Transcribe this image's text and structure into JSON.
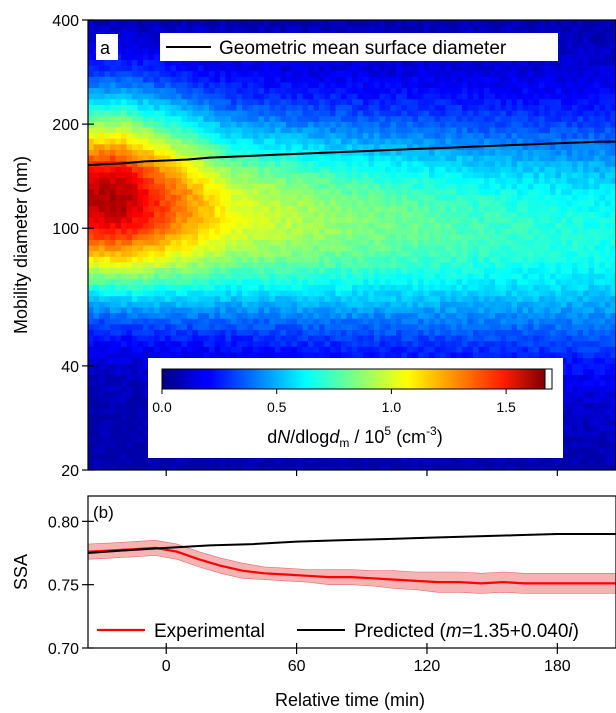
{
  "figure": {
    "xlabel": "Relative time (min)",
    "xticks": [
      0,
      60,
      120,
      180
    ],
    "xlim": [
      -36,
      207
    ]
  },
  "chart_data": [
    {
      "type": "heatmap",
      "panel_label": "a",
      "ylabel": "Mobility diameter (nm)",
      "yscale": "log",
      "ylim": [
        20,
        400
      ],
      "yticks": [
        20,
        40,
        100,
        200,
        400
      ],
      "legend": {
        "entries": [
          "Geometric mean surface diameter"
        ],
        "placement": "top"
      },
      "colorbar": {
        "label_prefix": "d",
        "label_italic1": "N",
        "label_mid": "/dlog",
        "label_italic2": "d",
        "label_sub": "m",
        "label_tail": " / 10",
        "label_sup1": "5",
        "label_units": " (cm",
        "label_sup2": "-3",
        "label_close": ")",
        "ticks": [
          "0.0",
          "0.5",
          "1.0",
          "1.5"
        ],
        "range": [
          0,
          1.7
        ],
        "placement": "bottom-center"
      },
      "mode_ridge": {
        "t": [
          -36,
          -20,
          0,
          30,
          60,
          90,
          120,
          150,
          180,
          207
        ],
        "d": [
          122,
          122,
          118,
          110,
          106,
          103,
          101,
          99,
          97,
          96
        ]
      },
      "peak_intensity": {
        "t": [
          -36,
          -20,
          0,
          30,
          60,
          90,
          120,
          150,
          180,
          207
        ],
        "n": [
          1.6,
          1.62,
          1.35,
          1.0,
          0.9,
          0.82,
          0.76,
          0.7,
          0.66,
          0.63
        ]
      },
      "series": [
        {
          "name": "Geometric mean surface diameter",
          "color": "#000000",
          "x": [
            -36,
            -30,
            -20,
            -10,
            0,
            10,
            20,
            30,
            40,
            50,
            60,
            70,
            80,
            90,
            100,
            110,
            120,
            130,
            140,
            150,
            160,
            170,
            180,
            190,
            200,
            207
          ],
          "y": [
            152,
            153,
            154,
            156,
            157,
            158,
            160,
            161,
            162,
            163,
            164,
            165,
            166,
            167,
            168,
            169,
            170,
            171,
            172,
            173,
            174,
            175,
            176,
            177,
            178,
            178
          ]
        }
      ]
    },
    {
      "type": "line",
      "panel_label": "(b)",
      "ylabel": "SSA",
      "ylim": [
        0.7,
        0.82
      ],
      "yticks": [
        "0.70",
        "0.75",
        "0.80"
      ],
      "legend_placement": "bottom",
      "series": [
        {
          "name": "Experimental",
          "color": "#ff0000",
          "band_color": "#f5b3b3",
          "x": [
            -36,
            -25,
            -15,
            -5,
            5,
            15,
            25,
            35,
            45,
            55,
            65,
            75,
            85,
            95,
            105,
            115,
            125,
            135,
            145,
            155,
            165,
            175,
            185,
            195,
            207
          ],
          "y": [
            0.776,
            0.777,
            0.778,
            0.779,
            0.776,
            0.77,
            0.765,
            0.761,
            0.759,
            0.758,
            0.757,
            0.756,
            0.756,
            0.755,
            0.754,
            0.753,
            0.752,
            0.752,
            0.751,
            0.752,
            0.751,
            0.751,
            0.751,
            0.751,
            0.751
          ],
          "band": [
            0.006,
            0.006,
            0.006,
            0.006,
            0.006,
            0.006,
            0.006,
            0.006,
            0.005,
            0.005,
            0.005,
            0.006,
            0.006,
            0.006,
            0.007,
            0.007,
            0.008,
            0.008,
            0.008,
            0.008,
            0.008,
            0.008,
            0.008,
            0.008,
            0.008
          ]
        },
        {
          "name": "Predicted",
          "name_open": "Predicted (",
          "name_italic": "m",
          "name_value": "=1.35+0.040",
          "name_italic2": "i",
          "name_close": ")",
          "color": "#000000",
          "x": [
            -36,
            -20,
            0,
            20,
            40,
            60,
            80,
            100,
            120,
            140,
            160,
            180,
            207
          ],
          "y": [
            0.775,
            0.777,
            0.779,
            0.781,
            0.782,
            0.784,
            0.785,
            0.786,
            0.787,
            0.788,
            0.789,
            0.79,
            0.79
          ]
        }
      ]
    }
  ]
}
